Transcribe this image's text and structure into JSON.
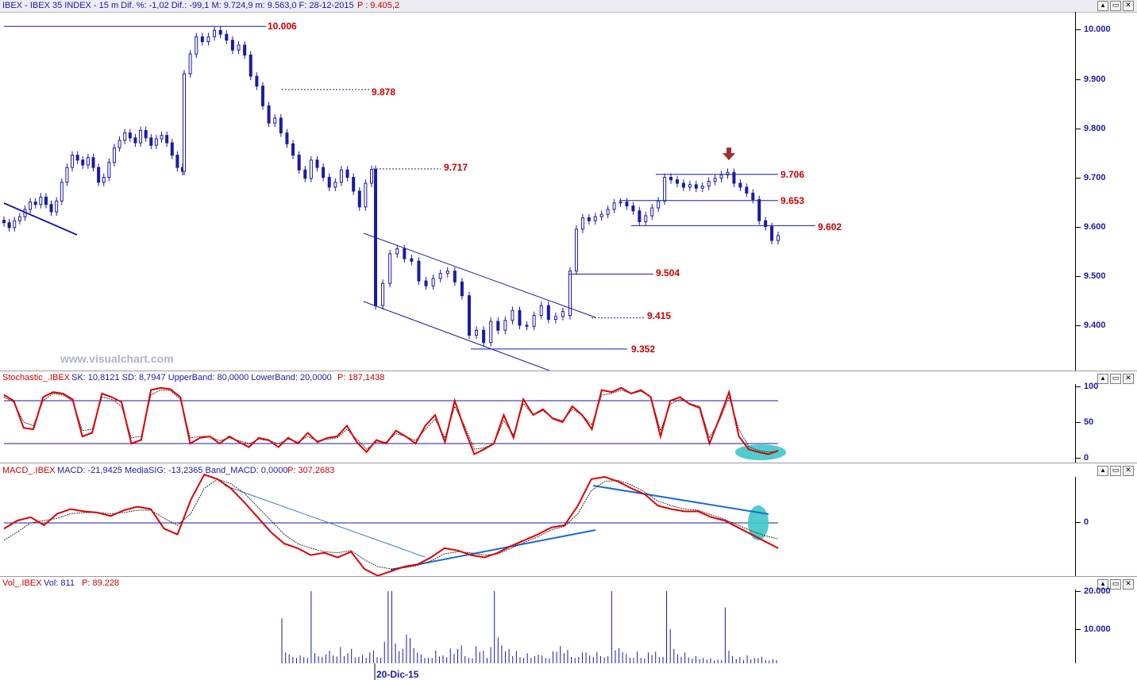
{
  "header": {
    "title": "IBEX - IBEX 35 INDEX -  15 m Dif. %: -1,02 Dif.: -99,1 M: 9.724,9 m: 9.563,0 F: 28-12-2015",
    "price_label": "P : 9.405,2"
  },
  "window_buttons": [
    "▴",
    "▭",
    "✕"
  ],
  "watermark": "www.visualchart.com",
  "date_label": "20-Dic-15",
  "price_pane": {
    "axis_labels": [
      "10.000",
      "9.900",
      "9.800",
      "9.700",
      "9.600",
      "9.500",
      "9.400"
    ],
    "levels": [
      "10.006",
      "9.878",
      "9.717",
      "9.706",
      "9.653",
      "9.602",
      "9.504",
      "9.415",
      "9.352"
    ]
  },
  "stoch_pane": {
    "header_name": "Stochastic_.IBEX",
    "header_values": "SK: 10,8121  SD: 8,7947  UpperBand: 80,0000  LowerBand: 20,0000",
    "header_p": "P: 187,1438",
    "axis_labels": [
      "100",
      "50",
      "0"
    ]
  },
  "macd_pane": {
    "header_name": "MACD_.IBEX",
    "header_values": "MACD: -21,9425  MediaSIG: -13,2365  Band_MACD: 0,0000",
    "header_p": "P: 307,2683",
    "axis_labels": [
      "0"
    ]
  },
  "vol_pane": {
    "header_name": "Vol_.IBEX",
    "header_values": "Vol: 811",
    "header_p": "P: 89.228",
    "axis_labels": [
      "20.000",
      "10.000"
    ]
  },
  "colors": {
    "candle": "#1a1aa8",
    "indicator": "#dd0000",
    "signal": "#333333",
    "trendline": "#1a1aa8",
    "level_text": "#cc0000",
    "highlight": "#3cc8c8"
  },
  "chart_data": [
    {
      "type": "candlestick",
      "ylim": [
        9300,
        10030
      ],
      "close": [
        9608,
        9598,
        9612,
        9620,
        9635,
        9650,
        9645,
        9660,
        9645,
        9630,
        9652,
        9690,
        9720,
        9745,
        9735,
        9725,
        9740,
        9720,
        9690,
        9700,
        9730,
        9760,
        9775,
        9790,
        9780,
        9770,
        9795,
        9780,
        9765,
        9778,
        9785,
        9770,
        9745,
        9720,
        9712,
        9910,
        9950,
        9985,
        9975,
        9985,
        9998,
        9990,
        9978,
        9958,
        9968,
        9948,
        9905,
        9885,
        9845,
        9810,
        9820,
        9790,
        9768,
        9745,
        9715,
        9698,
        9735,
        9720,
        9700,
        9680,
        9690,
        9715,
        9700,
        9672,
        9640,
        9688,
        9716,
        9440,
        9485,
        9545,
        9555,
        9535,
        9530,
        9490,
        9480,
        9495,
        9505,
        9510,
        9488,
        9460,
        9380,
        9390,
        9365,
        9408,
        9390,
        9410,
        9430,
        9400,
        9398,
        9420,
        9440,
        9412,
        9418,
        9428,
        9420,
        9510,
        9595,
        9618,
        9612,
        9620,
        9625,
        9635,
        9648,
        9650,
        9642,
        9632,
        9610,
        9622,
        9638,
        9652,
        9700,
        9695,
        9688,
        9680,
        9685,
        9678,
        9682,
        9692,
        9698,
        9705,
        9710,
        9688,
        9680,
        9668,
        9655,
        9612,
        9600,
        9572,
        9582
      ],
      "series": [
        {
          "name": "9.504",
          "values": []
        }
      ]
    },
    {
      "type": "line",
      "ylim": [
        0,
        100
      ],
      "series": [
        {
          "name": "SK",
          "values": [
            88,
            80,
            42,
            40,
            85,
            92,
            90,
            82,
            30,
            35,
            90,
            85,
            78,
            20,
            25,
            95,
            98,
            96,
            85,
            20,
            28,
            30,
            20,
            30,
            22,
            15,
            28,
            25,
            15,
            28,
            20,
            35,
            22,
            28,
            30,
            45,
            22,
            8,
            25,
            20,
            38,
            30,
            20,
            45,
            60,
            22,
            80,
            40,
            5,
            12,
            20,
            60,
            28,
            82,
            60,
            68,
            55,
            50,
            72,
            60,
            40,
            95,
            92,
            98,
            90,
            95,
            85,
            30,
            80,
            85,
            75,
            70,
            20,
            55,
            92,
            30,
            12,
            8,
            5,
            10
          ]
        },
        {
          "name": "SD",
          "values": [
            85,
            78,
            50,
            45,
            80,
            90,
            88,
            80,
            38,
            40,
            85,
            82,
            72,
            28,
            30,
            88,
            95,
            94,
            82,
            28,
            30,
            30,
            24,
            28,
            24,
            20,
            26,
            24,
            20,
            26,
            22,
            30,
            24,
            26,
            28,
            40,
            26,
            12,
            22,
            22,
            34,
            30,
            24,
            40,
            54,
            28,
            72,
            45,
            12,
            14,
            20,
            52,
            32,
            76,
            60,
            66,
            56,
            52,
            68,
            60,
            46,
            88,
            90,
            95,
            90,
            93,
            86,
            38,
            75,
            82,
            76,
            72,
            28,
            52,
            85,
            40,
            16,
            10,
            8,
            9
          ]
        }
      ]
    },
    {
      "type": "line",
      "ylim": [
        -45,
        45
      ],
      "series": [
        {
          "name": "MACD",
          "values": [
            -5,
            2,
            5,
            -2,
            8,
            12,
            10,
            9,
            6,
            11,
            14,
            12,
            -5,
            -10,
            20,
            42,
            38,
            30,
            18,
            5,
            -8,
            -18,
            -22,
            -28,
            -26,
            -30,
            -25,
            -40,
            -46,
            -42,
            -38,
            -36,
            -30,
            -22,
            -24,
            -28,
            -30,
            -26,
            -20,
            -15,
            -10,
            -4,
            -2,
            15,
            38,
            40,
            36,
            30,
            25,
            15,
            12,
            10,
            10,
            5,
            2,
            -4,
            -10,
            -16,
            -22
          ]
        },
        {
          "name": "MediaSIG",
          "values": [
            -15,
            -8,
            0,
            2,
            4,
            8,
            9,
            9,
            8,
            9,
            11,
            11,
            4,
            -2,
            8,
            30,
            38,
            34,
            26,
            14,
            2,
            -10,
            -18,
            -22,
            -25,
            -26,
            -24,
            -32,
            -38,
            -40,
            -39,
            -37,
            -33,
            -27,
            -25,
            -26,
            -28,
            -27,
            -22,
            -17,
            -12,
            -6,
            -3,
            8,
            28,
            36,
            37,
            33,
            27,
            19,
            15,
            12,
            11,
            7,
            3,
            -2,
            -7,
            -11,
            -14
          ]
        }
      ]
    },
    {
      "type": "bar",
      "ylim": [
        0,
        22000
      ],
      "values": [
        12500,
        3000,
        2500,
        1800,
        1500,
        2200,
        1700,
        1500,
        20000,
        2800,
        2000,
        1800,
        2500,
        3500,
        2200,
        1900,
        4500,
        2000,
        2800,
        4000,
        1600,
        1800,
        2300,
        1500,
        3000,
        3600,
        1700,
        1500,
        6000,
        20000,
        20000,
        5500,
        3400,
        4000,
        8000,
        7000,
        4200,
        3000,
        2500,
        1500,
        1500,
        1500,
        3600,
        1900,
        2200,
        1700,
        4100,
        2600,
        4000,
        5000,
        2000,
        1500,
        1400,
        4700,
        3200,
        3500,
        1500,
        4500,
        20000,
        7200,
        5000,
        3300,
        4000,
        2000,
        3400,
        1700,
        1500,
        2800,
        1500,
        2000,
        2400,
        2200,
        1500,
        1300,
        3300,
        3200,
        4800,
        2800,
        3700,
        1800,
        1500,
        1800,
        3000,
        3000,
        2200,
        1800,
        3100,
        2000,
        1600,
        2000,
        20000,
        3600,
        4200,
        3100,
        2600,
        1600,
        1500,
        3300,
        1500,
        1400,
        3000,
        2300,
        3200,
        1700,
        1800,
        20000,
        9500,
        4000,
        2500,
        1800,
        3000,
        1600,
        1300,
        2000,
        1200,
        1500,
        1000,
        1400,
        800,
        1000,
        900,
        15500,
        3500,
        2000,
        1200,
        1800,
        900,
        2200,
        1100,
        1500,
        1400,
        1800,
        1000,
        800,
        1200,
        900
      ]
    }
  ]
}
